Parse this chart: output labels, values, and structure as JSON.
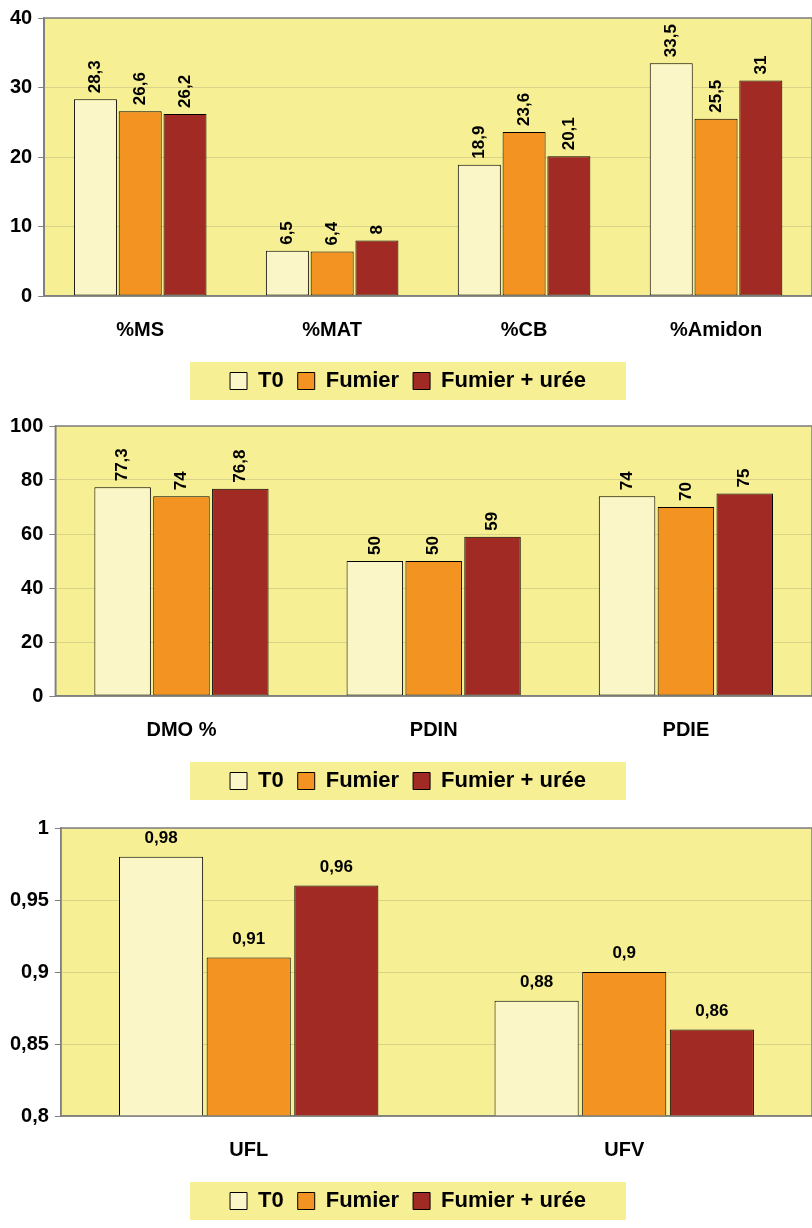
{
  "chart_data": [
    {
      "type": "bar",
      "categories": [
        "%MS",
        "%MAT",
        "%CB",
        "%Amidon"
      ],
      "ylim": [
        0,
        40
      ],
      "yticks": [
        0,
        10,
        20,
        30,
        40
      ],
      "grid": "y",
      "legend": "bottom",
      "series": [
        {
          "name": "T0",
          "color": "#faf6c8",
          "values": [
            28.3,
            6.5,
            18.9,
            33.5
          ],
          "value_labels": [
            "28,3",
            "6,5",
            "18,9",
            "33,5"
          ]
        },
        {
          "name": "Fumier",
          "color": "#f39322",
          "values": [
            26.6,
            6.4,
            23.6,
            25.5
          ],
          "value_labels": [
            "26,6",
            "6,4",
            "23,6",
            "25,5"
          ]
        },
        {
          "name": "Fumier + urée",
          "color": "#a12a24",
          "values": [
            26.2,
            8,
            20.1,
            31
          ],
          "value_labels": [
            "26,2",
            "8",
            "20,1",
            "31"
          ]
        }
      ]
    },
    {
      "type": "bar",
      "categories": [
        "DMO %",
        "PDIN",
        "PDIE"
      ],
      "ylim": [
        0,
        100
      ],
      "yticks": [
        0,
        20,
        40,
        60,
        80,
        100
      ],
      "grid": "y",
      "legend": "bottom",
      "series": [
        {
          "name": "T0",
          "color": "#faf6c8",
          "values": [
            77.3,
            50,
            74
          ],
          "value_labels": [
            "77,3",
            "50",
            "74"
          ]
        },
        {
          "name": "Fumier",
          "color": "#f39322",
          "values": [
            74,
            50,
            70
          ],
          "value_labels": [
            "74",
            "50",
            "70"
          ]
        },
        {
          "name": "Fumier + urée",
          "color": "#a12a24",
          "values": [
            76.8,
            59,
            75
          ],
          "value_labels": [
            "76,8",
            "59",
            "75"
          ]
        }
      ]
    },
    {
      "type": "bar",
      "categories": [
        "UFL",
        "UFV"
      ],
      "ylim": [
        0.8,
        1
      ],
      "yticks": [
        {
          "value": 0.8,
          "label": "0,8"
        },
        {
          "value": 0.85,
          "label": "0,85"
        },
        {
          "value": 0.9,
          "label": "0,9"
        },
        {
          "value": 0.95,
          "label": "0,95"
        },
        1
      ],
      "grid": "y",
      "legend": "bottom",
      "series": [
        {
          "name": "T0",
          "color": "#faf6c8",
          "values": [
            0.98,
            0.88
          ],
          "value_labels": [
            "0,98",
            "0,88"
          ]
        },
        {
          "name": "Fumier",
          "color": "#f39322",
          "values": [
            0.91,
            0.9
          ],
          "value_labels": [
            "0,91",
            "0,9"
          ]
        },
        {
          "name": "Fumier + urée",
          "color": "#a12a24",
          "values": [
            0.96,
            0.86
          ],
          "value_labels": [
            "0,96",
            "0,86"
          ]
        }
      ]
    }
  ]
}
